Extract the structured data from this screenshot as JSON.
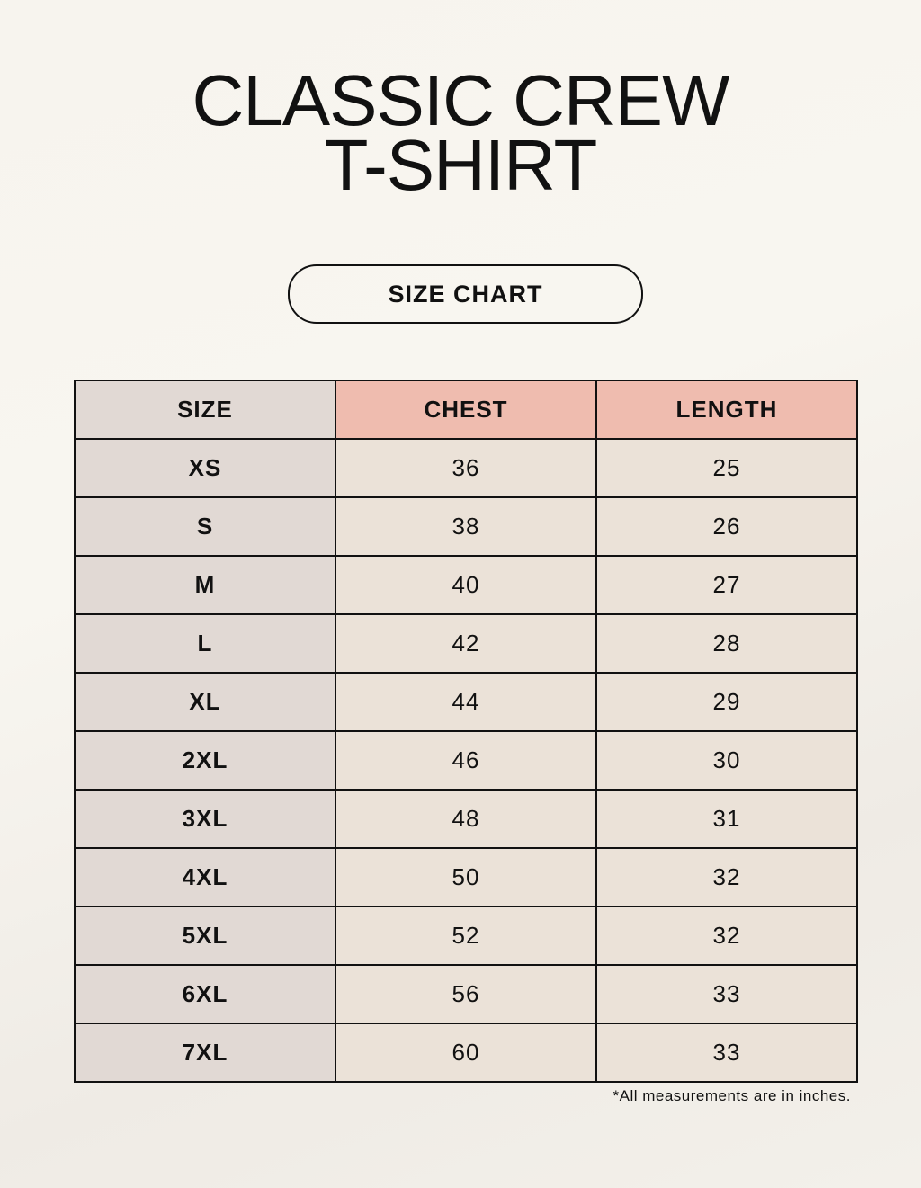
{
  "title": {
    "line1": "CLASSIC CREW",
    "line2": "T-SHIRT"
  },
  "subtitle": "SIZE CHART",
  "table": {
    "headers": [
      "SIZE",
      "CHEST",
      "LENGTH"
    ],
    "rows": [
      [
        "XS",
        "36",
        "25"
      ],
      [
        "S",
        "38",
        "26"
      ],
      [
        "M",
        "40",
        "27"
      ],
      [
        "L",
        "42",
        "28"
      ],
      [
        "XL",
        "44",
        "29"
      ],
      [
        "2XL",
        "46",
        "30"
      ],
      [
        "3XL",
        "48",
        "31"
      ],
      [
        "4XL",
        "50",
        "32"
      ],
      [
        "5XL",
        "52",
        "32"
      ],
      [
        "6XL",
        "56",
        "33"
      ],
      [
        "7XL",
        "60",
        "33"
      ]
    ]
  },
  "note": "*All measurements are in inches.",
  "colors": {
    "header_accent": "#efbcaf",
    "size_column": "#e1d9d4",
    "cell": "#ebe2d8"
  }
}
